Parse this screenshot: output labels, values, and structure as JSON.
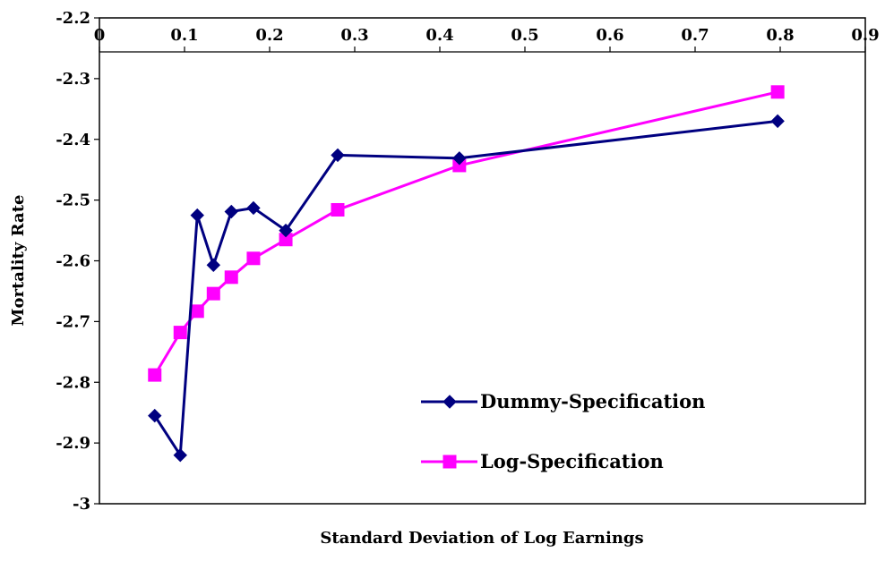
{
  "chart_data": {
    "type": "line",
    "title": "",
    "xlabel": "Standard Deviation of Log Earnings",
    "ylabel": "Mortality Rate",
    "xlim": [
      0,
      0.9
    ],
    "ylim": [
      -3,
      -2.2
    ],
    "x_ticks": [
      "0",
      "0.1",
      "0.2",
      "0.3",
      "0.4",
      "0.5",
      "0.6",
      "0.7",
      "0.8",
      "0.9"
    ],
    "y_ticks": [
      "-2.2",
      "-2.3",
      "-2.4",
      "-2.5",
      "-2.6",
      "-2.7",
      "-2.8",
      "-2.9",
      "-3"
    ],
    "grid": false,
    "legend_position": "lower-right",
    "series": [
      {
        "name": "Dummy-Specification",
        "color": "#000080",
        "marker": "diamond",
        "x": [
          0.065,
          0.095,
          0.115,
          0.134,
          0.155,
          0.181,
          0.219,
          0.28,
          0.423,
          0.797
        ],
        "y": [
          -2.855,
          -2.92,
          -2.525,
          -2.607,
          -2.519,
          -2.513,
          -2.55,
          -2.426,
          -2.431,
          -2.37
        ]
      },
      {
        "name": "Log-Specification",
        "color": "#FF00FF",
        "marker": "square",
        "x": [
          0.065,
          0.095,
          0.115,
          0.134,
          0.155,
          0.181,
          0.219,
          0.28,
          0.423,
          0.797
        ],
        "y": [
          -2.788,
          -2.718,
          -2.683,
          -2.654,
          -2.627,
          -2.596,
          -2.565,
          -2.516,
          -2.443,
          -2.322
        ]
      }
    ]
  }
}
